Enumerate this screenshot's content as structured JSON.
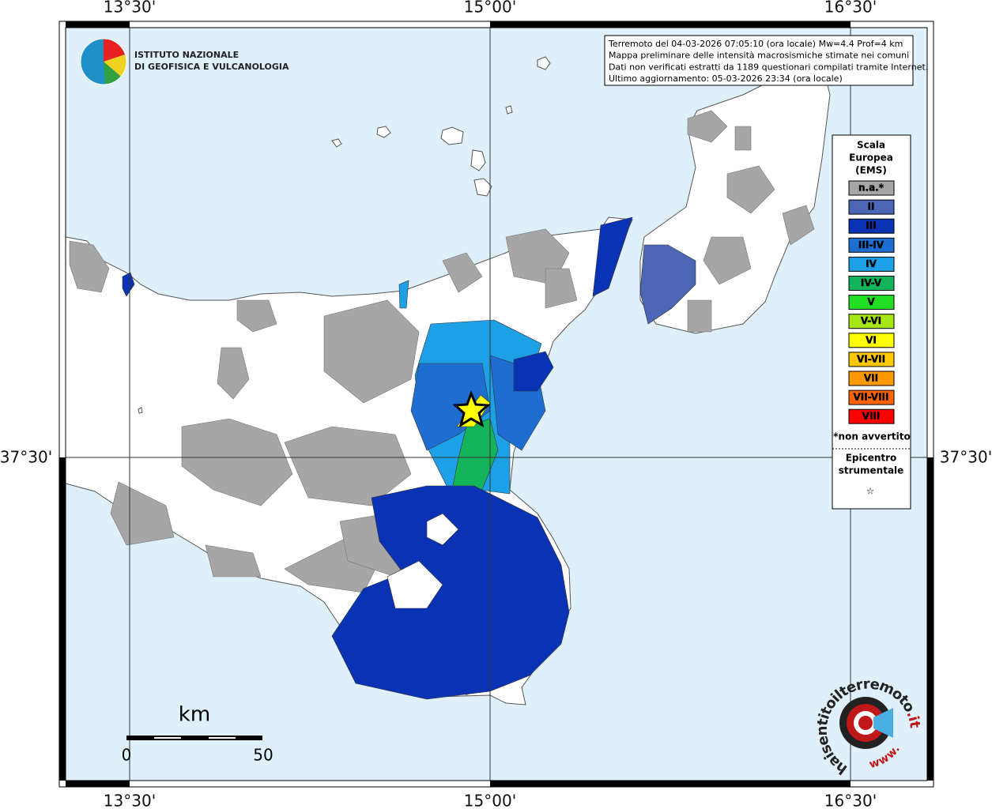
{
  "graticule": {
    "lon_labels": [
      "13°30'",
      "15°00'",
      "16°30'"
    ],
    "lat_labels": [
      "37°30'"
    ]
  },
  "logo": {
    "lines": [
      "ISTITUTO NAZIONALE",
      "DI GEOFISICA E VULCANOLOGIA"
    ]
  },
  "info_box": {
    "lines": [
      "Terremoto del 04-03-2026 07:05:10 (ora locale) Mw=4.4 Prof=4 km",
      "Mappa preliminare delle intensità macrosismiche stimate nei comuni",
      "Dati non verificati estratti da 1189 questionari compilati tramite Internet.",
      "Ultimo aggiornamento: 05-03-2026 23:34 (ora locale)"
    ]
  },
  "legend": {
    "title": [
      "Scala",
      "Europea",
      "(EMS)"
    ],
    "items": [
      {
        "label": "n.a.*",
        "color": "#a6a6a6"
      },
      {
        "label": "II",
        "color": "#4a66b4"
      },
      {
        "label": "III",
        "color": "#0a32b4"
      },
      {
        "label": "III-IV",
        "color": "#1e6ed2"
      },
      {
        "label": "IV",
        "color": "#1ea0e6"
      },
      {
        "label": "IV-V",
        "color": "#14b45a"
      },
      {
        "label": "V",
        "color": "#22dd22"
      },
      {
        "label": "V-VI",
        "color": "#a6e614"
      },
      {
        "label": "VI",
        "color": "#ffff00"
      },
      {
        "label": "VI-VII",
        "color": "#ffc800"
      },
      {
        "label": "VII",
        "color": "#ff9900"
      },
      {
        "label": "VII-VIII",
        "color": "#ff6400"
      },
      {
        "label": "VIII",
        "color": "#ff0000"
      }
    ],
    "note": "*non avvertito",
    "epicenter": [
      "Epicentro",
      "strumentale"
    ],
    "epicenter_symbol": "☆"
  },
  "scale_bar": {
    "unit": "km",
    "labels": [
      0,
      50
    ]
  },
  "badge": {
    "prefix": "www.",
    "name": "haisentitoilterremoto",
    "suffix": ".it"
  }
}
